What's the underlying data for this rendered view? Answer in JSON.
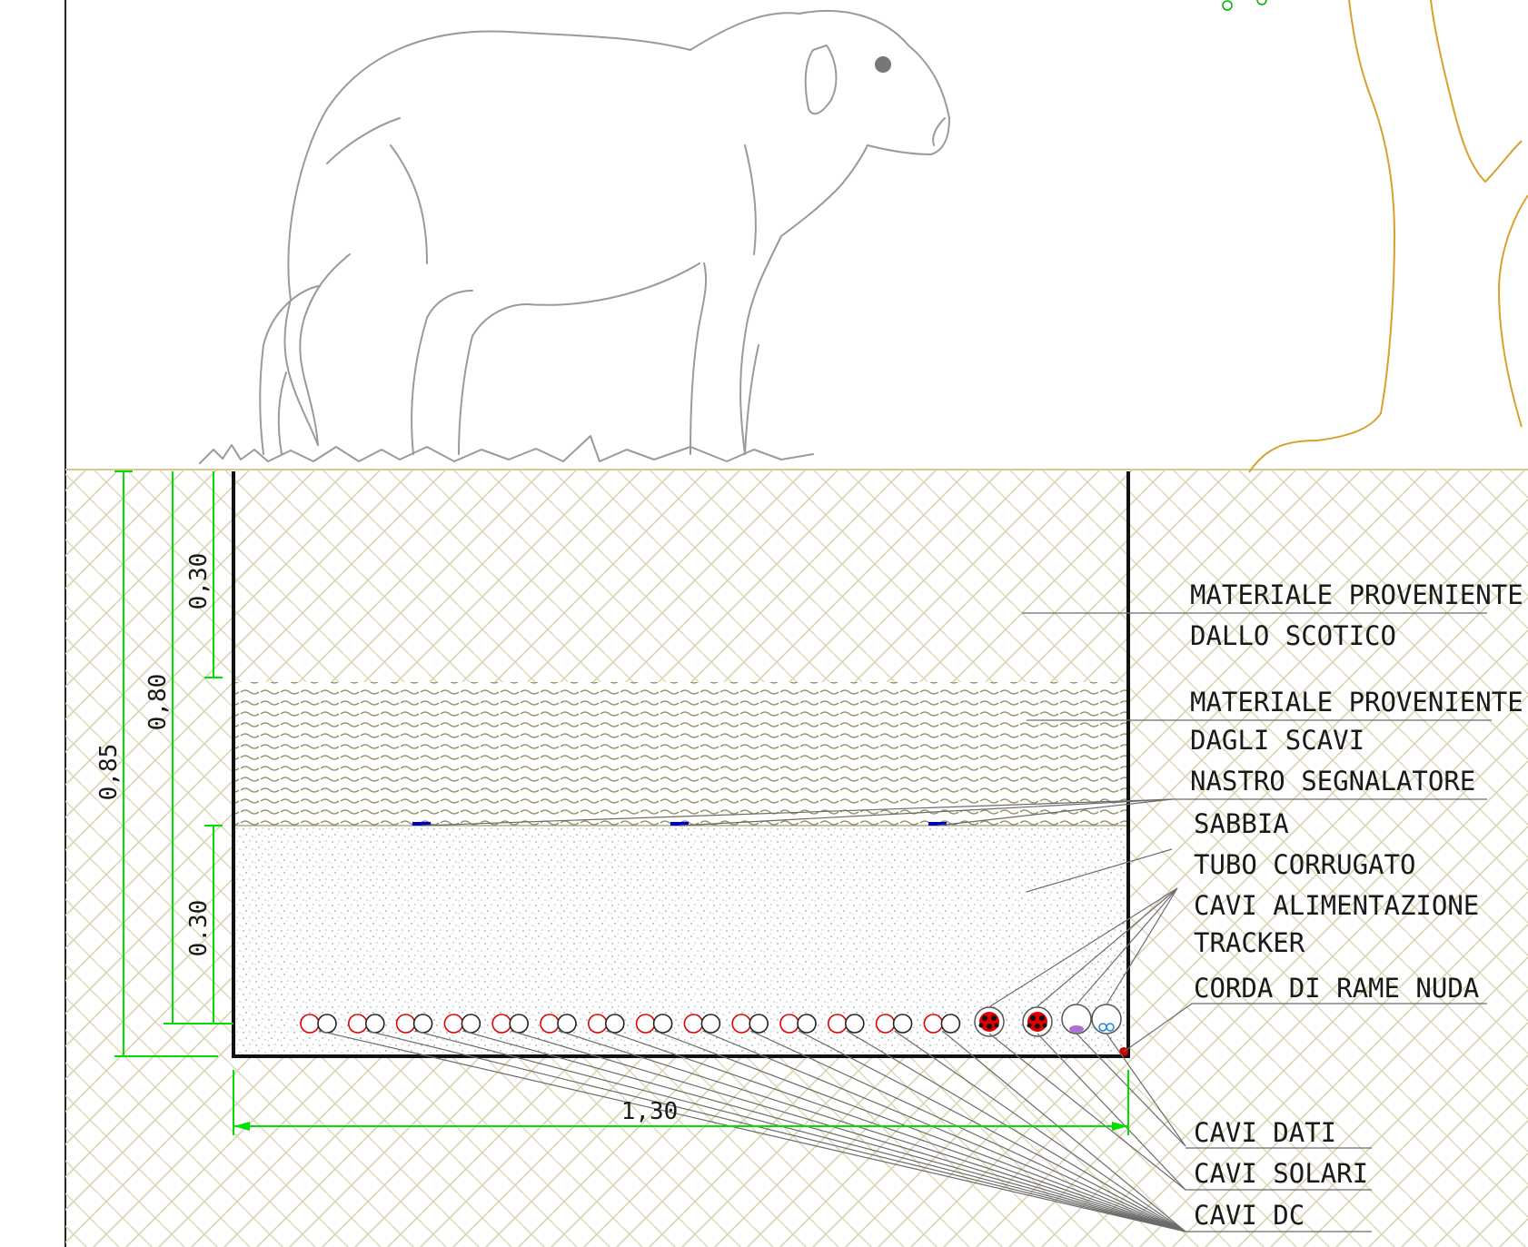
{
  "labels": {
    "materiale_scotico_1": "MATERIALE PROVENIENTE",
    "materiale_scotico_2": "DALLO SCOTICO",
    "materiale_scavi_1": "MATERIALE PROVENIENTE",
    "materiale_scavi_2": "DAGLI SCAVI",
    "nastro": "NASTRO SEGNALATORE",
    "sabbia": "SABBIA",
    "tubo": "TUBO CORRUGATO",
    "cavi_alim_1": "CAVI ALIMENTAZIONE",
    "cavi_alim_2": "TRACKER",
    "corda": "CORDA DI RAME NUDA",
    "cavi_dati": "CAVI DATI",
    "cavi_solari": "CAVI SOLARI",
    "cavi_dc": "CAVI DC"
  },
  "dimensions": {
    "total_depth": "0,85",
    "fill_depth": "0,80",
    "top_layer": "0,30",
    "sand_layer": "0.30",
    "trench_width": "1,30"
  },
  "colors": {
    "dimension": "#00e000",
    "cable_positive": "#e00000",
    "cable_negative": "#222222",
    "tree": "#d9a030",
    "warning_tape": "#0000cc",
    "copper_rope": "#cc0000"
  },
  "dc_cable_pairs": 14
}
